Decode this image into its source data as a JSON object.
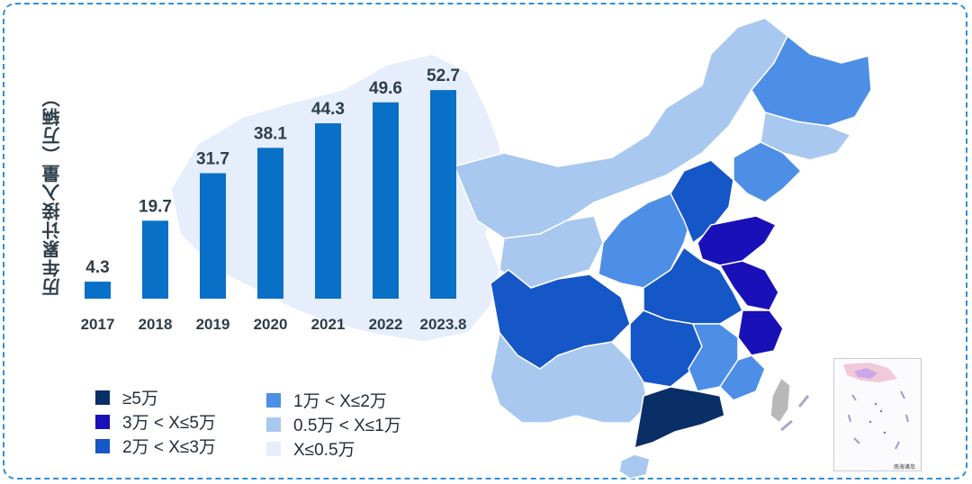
{
  "chart_data": {
    "type": "bar",
    "title": "",
    "ylabel": "历年累计接入量（万辆）",
    "xlabel": "",
    "categories": [
      "2017",
      "2018",
      "2019",
      "2020",
      "2021",
      "2022",
      "2023.8"
    ],
    "values": [
      4.3,
      19.7,
      31.7,
      38.1,
      44.3,
      49.6,
      52.7
    ],
    "value_labels": [
      "4.3",
      "19.7",
      "31.7",
      "38.1",
      "44.3",
      "49.6",
      "52.7"
    ],
    "ylim": [
      0,
      60
    ],
    "bar_color": "#0870c6",
    "grid": false
  },
  "map": {
    "inset_title": "南海诸岛",
    "legend": [
      {
        "label": "≥5万",
        "color": "#0a2f66"
      },
      {
        "label": "3万 < X≤5万",
        "color": "#1a10b8"
      },
      {
        "label": "2万 < X≤3万",
        "color": "#1557c6"
      },
      {
        "label": "1万 < X≤2万",
        "color": "#4d8ee6"
      },
      {
        "label": "0.5万 < X≤1万",
        "color": "#a9c8ef"
      },
      {
        "label": "X≤0.5万",
        "color": "#e6eefb"
      }
    ]
  }
}
